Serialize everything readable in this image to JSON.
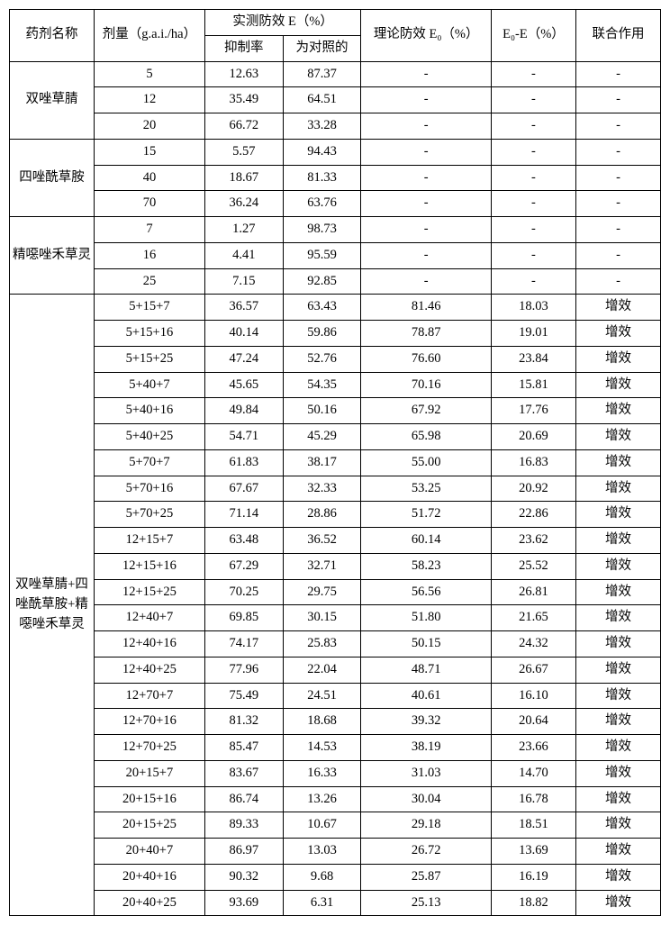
{
  "table": {
    "font_size_pt": 14.5,
    "border_color": "#000000",
    "background_color": "#ffffff",
    "header": {
      "name": "药剂名称",
      "dose": "剂量（g.a.i./ha）",
      "measured": "实测防效 E（%）",
      "inhibition": "抑制率",
      "control": "为对照的",
      "theoretical": "理论防效 E₀（%）",
      "diff": "E₀-E（%）",
      "effect": "联合作用"
    },
    "groups": [
      {
        "name": "双唑草腈",
        "rows": [
          {
            "dose": "5",
            "inh": "12.63",
            "ctrl": "87.37",
            "theo": "-",
            "diff": "-",
            "eff": "-"
          },
          {
            "dose": "12",
            "inh": "35.49",
            "ctrl": "64.51",
            "theo": "-",
            "diff": "-",
            "eff": "-"
          },
          {
            "dose": "20",
            "inh": "66.72",
            "ctrl": "33.28",
            "theo": "-",
            "diff": "-",
            "eff": "-"
          }
        ]
      },
      {
        "name": "四唑酰草胺",
        "rows": [
          {
            "dose": "15",
            "inh": "5.57",
            "ctrl": "94.43",
            "theo": "-",
            "diff": "-",
            "eff": "-"
          },
          {
            "dose": "40",
            "inh": "18.67",
            "ctrl": "81.33",
            "theo": "-",
            "diff": "-",
            "eff": "-"
          },
          {
            "dose": "70",
            "inh": "36.24",
            "ctrl": "63.76",
            "theo": "-",
            "diff": "-",
            "eff": "-"
          }
        ]
      },
      {
        "name": "精噁唑禾草灵",
        "rows": [
          {
            "dose": "7",
            "inh": "1.27",
            "ctrl": "98.73",
            "theo": "-",
            "diff": "-",
            "eff": "-"
          },
          {
            "dose": "16",
            "inh": "4.41",
            "ctrl": "95.59",
            "theo": "-",
            "diff": "-",
            "eff": "-"
          },
          {
            "dose": "25",
            "inh": "7.15",
            "ctrl": "92.85",
            "theo": "-",
            "diff": "-",
            "eff": "-"
          }
        ]
      },
      {
        "name": "双唑草腈+四唑酰草胺+精噁唑禾草灵",
        "rows": [
          {
            "dose": "5+15+7",
            "inh": "36.57",
            "ctrl": "63.43",
            "theo": "81.46",
            "diff": "18.03",
            "eff": "增效"
          },
          {
            "dose": "5+15+16",
            "inh": "40.14",
            "ctrl": "59.86",
            "theo": "78.87",
            "diff": "19.01",
            "eff": "增效"
          },
          {
            "dose": "5+15+25",
            "inh": "47.24",
            "ctrl": "52.76",
            "theo": "76.60",
            "diff": "23.84",
            "eff": "增效"
          },
          {
            "dose": "5+40+7",
            "inh": "45.65",
            "ctrl": "54.35",
            "theo": "70.16",
            "diff": "15.81",
            "eff": "增效"
          },
          {
            "dose": "5+40+16",
            "inh": "49.84",
            "ctrl": "50.16",
            "theo": "67.92",
            "diff": "17.76",
            "eff": "增效"
          },
          {
            "dose": "5+40+25",
            "inh": "54.71",
            "ctrl": "45.29",
            "theo": "65.98",
            "diff": "20.69",
            "eff": "增效"
          },
          {
            "dose": "5+70+7",
            "inh": "61.83",
            "ctrl": "38.17",
            "theo": "55.00",
            "diff": "16.83",
            "eff": "增效"
          },
          {
            "dose": "5+70+16",
            "inh": "67.67",
            "ctrl": "32.33",
            "theo": "53.25",
            "diff": "20.92",
            "eff": "增效"
          },
          {
            "dose": "5+70+25",
            "inh": "71.14",
            "ctrl": "28.86",
            "theo": "51.72",
            "diff": "22.86",
            "eff": "增效"
          },
          {
            "dose": "12+15+7",
            "inh": "63.48",
            "ctrl": "36.52",
            "theo": "60.14",
            "diff": "23.62",
            "eff": "增效"
          },
          {
            "dose": "12+15+16",
            "inh": "67.29",
            "ctrl": "32.71",
            "theo": "58.23",
            "diff": "25.52",
            "eff": "增效"
          },
          {
            "dose": "12+15+25",
            "inh": "70.25",
            "ctrl": "29.75",
            "theo": "56.56",
            "diff": "26.81",
            "eff": "增效"
          },
          {
            "dose": "12+40+7",
            "inh": "69.85",
            "ctrl": "30.15",
            "theo": "51.80",
            "diff": "21.65",
            "eff": "增效"
          },
          {
            "dose": "12+40+16",
            "inh": "74.17",
            "ctrl": "25.83",
            "theo": "50.15",
            "diff": "24.32",
            "eff": "增效"
          },
          {
            "dose": "12+40+25",
            "inh": "77.96",
            "ctrl": "22.04",
            "theo": "48.71",
            "diff": "26.67",
            "eff": "增效"
          },
          {
            "dose": "12+70+7",
            "inh": "75.49",
            "ctrl": "24.51",
            "theo": "40.61",
            "diff": "16.10",
            "eff": "增效"
          },
          {
            "dose": "12+70+16",
            "inh": "81.32",
            "ctrl": "18.68",
            "theo": "39.32",
            "diff": "20.64",
            "eff": "增效"
          },
          {
            "dose": "12+70+25",
            "inh": "85.47",
            "ctrl": "14.53",
            "theo": "38.19",
            "diff": "23.66",
            "eff": "增效"
          },
          {
            "dose": "20+15+7",
            "inh": "83.67",
            "ctrl": "16.33",
            "theo": "31.03",
            "diff": "14.70",
            "eff": "增效"
          },
          {
            "dose": "20+15+16",
            "inh": "86.74",
            "ctrl": "13.26",
            "theo": "30.04",
            "diff": "16.78",
            "eff": "增效"
          },
          {
            "dose": "20+15+25",
            "inh": "89.33",
            "ctrl": "10.67",
            "theo": "29.18",
            "diff": "18.51",
            "eff": "增效"
          },
          {
            "dose": "20+40+7",
            "inh": "86.97",
            "ctrl": "13.03",
            "theo": "26.72",
            "diff": "13.69",
            "eff": "增效"
          },
          {
            "dose": "20+40+16",
            "inh": "90.32",
            "ctrl": "9.68",
            "theo": "25.87",
            "diff": "16.19",
            "eff": "增效"
          },
          {
            "dose": "20+40+25",
            "inh": "93.69",
            "ctrl": "6.31",
            "theo": "25.13",
            "diff": "18.82",
            "eff": "增效"
          }
        ]
      }
    ]
  }
}
